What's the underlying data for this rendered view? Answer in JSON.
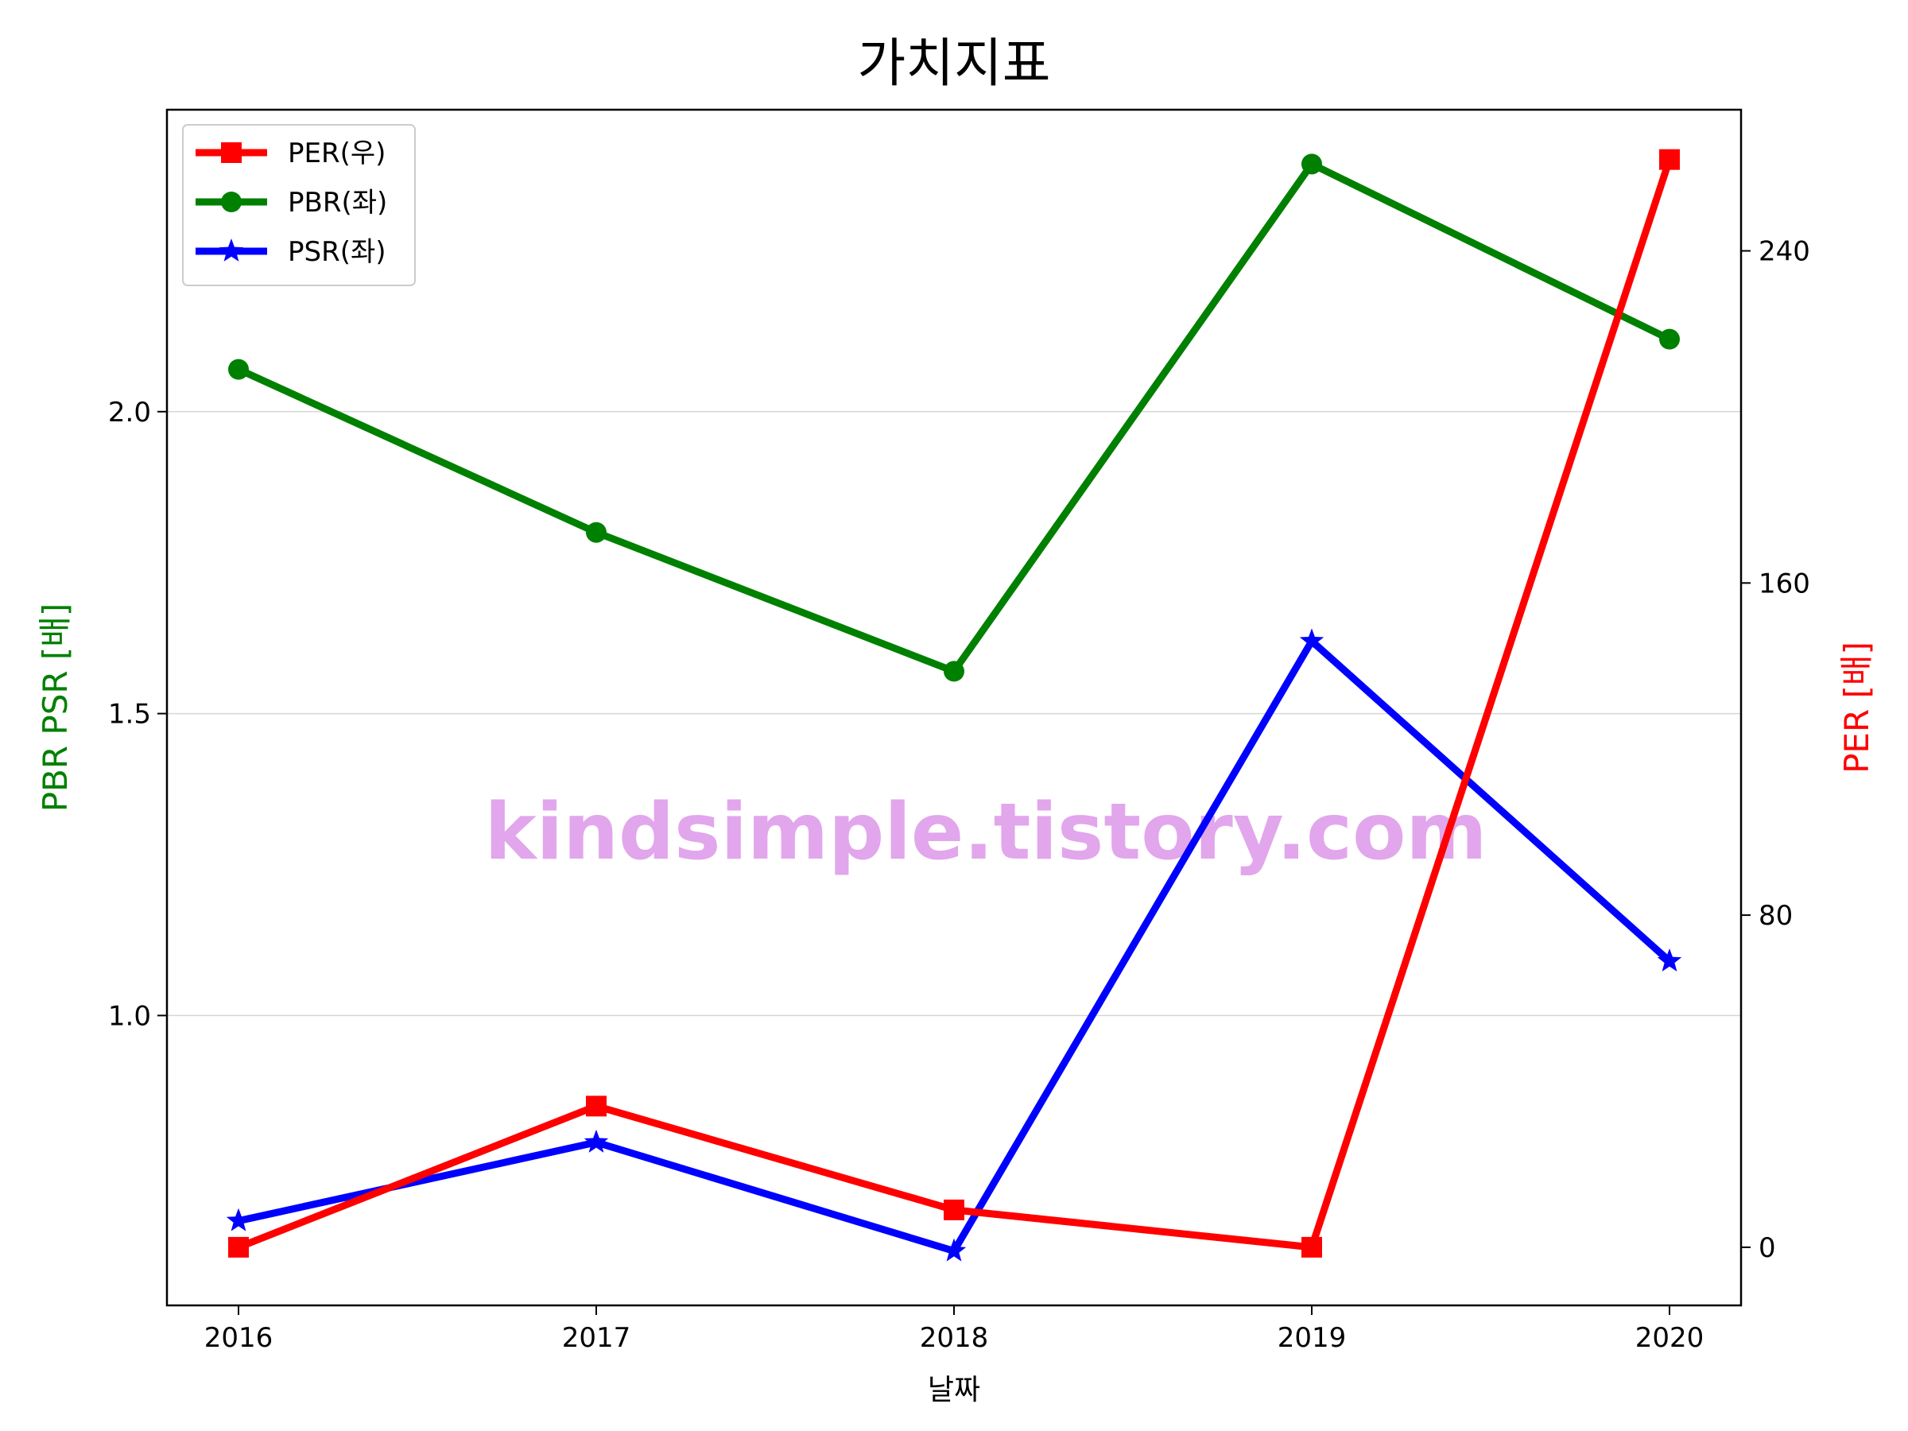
{
  "chart_data": {
    "type": "line",
    "title": "가치지표",
    "xlabel": "날짜",
    "ylabel_left": "PBR PSR [배]",
    "ylabel_right": "PER [배]",
    "categories": [
      "2016",
      "2017",
      "2018",
      "2019",
      "2020"
    ],
    "left_axis": {
      "range": [
        0.52,
        2.5
      ],
      "ticks": [
        1.0,
        1.5,
        2.0
      ],
      "tick_labels": [
        "1.0",
        "1.5",
        "2.0"
      ]
    },
    "right_axis": {
      "range": [
        -14,
        274
      ],
      "ticks": [
        0,
        80,
        160,
        240
      ],
      "tick_labels": [
        "0",
        "80",
        "160",
        "240"
      ]
    },
    "grid": "horizontal, left axis",
    "legend": "top-left",
    "series": [
      {
        "name": "PER(우)",
        "axis": "right",
        "color": "#ff0000",
        "marker": "square",
        "values": [
          0,
          34,
          9,
          0,
          262
        ]
      },
      {
        "name": "PBR(좌)",
        "axis": "left",
        "color": "#008000",
        "marker": "circle",
        "values": [
          2.07,
          1.8,
          1.57,
          2.41,
          2.12
        ]
      },
      {
        "name": "PSR(좌)",
        "axis": "left",
        "color": "#0000ff",
        "marker": "star",
        "values": [
          0.66,
          0.79,
          0.61,
          1.62,
          1.09
        ]
      }
    ],
    "watermark": "kindsimple.tistory.com",
    "watermark_color": "#e2a6ec",
    "axis_label_colors": {
      "left": "#008000",
      "right": "#ff0000"
    }
  }
}
